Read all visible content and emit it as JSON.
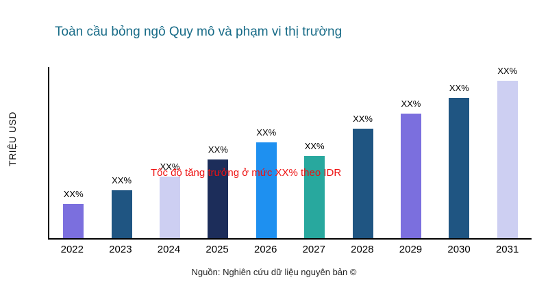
{
  "header": {
    "title": "Toàn cầu bỏng ngô Quy mô và phạm vi thị trường"
  },
  "annotation": {
    "text": "Tốc độ tăng trưởng ở mức XX% theo IDR"
  },
  "footer": {
    "source": "Nguồn: Nghiên cứu dữ liệu nguyên bản ©"
  },
  "chart_data": {
    "type": "bar",
    "title": "Toàn cầu bỏng ngô Quy mô và phạm vi thị trường",
    "xlabel": "",
    "ylabel": "TRIỆU USD",
    "categories": [
      "2022",
      "2023",
      "2024",
      "2025",
      "2026",
      "2027",
      "2028",
      "2029",
      "2030",
      "2031"
    ],
    "values": [
      50,
      70,
      90,
      115,
      140,
      120,
      160,
      182,
      205,
      230
    ],
    "bar_labels": [
      "XX%",
      "XX%",
      "XX%",
      "XX%",
      "XX%",
      "XX%",
      "XX%",
      "XX%",
      "XX%",
      "XX%"
    ],
    "bar_colors": [
      "#7B6FDE",
      "#1F5582",
      "#CDCFF2",
      "#1C2D5A",
      "#1E90F0",
      "#28A89E",
      "#1F5582",
      "#7B6FDE",
      "#1F5582",
      "#CDCFF2"
    ],
    "ylim": [
      0,
      250
    ],
    "grid": false,
    "legend": "none",
    "annotation": "Tốc độ tăng trưởng ở mức XX% theo IDR",
    "source_note": "Nguồn: Nghiên cứu dữ liệu nguyên bản ©"
  }
}
